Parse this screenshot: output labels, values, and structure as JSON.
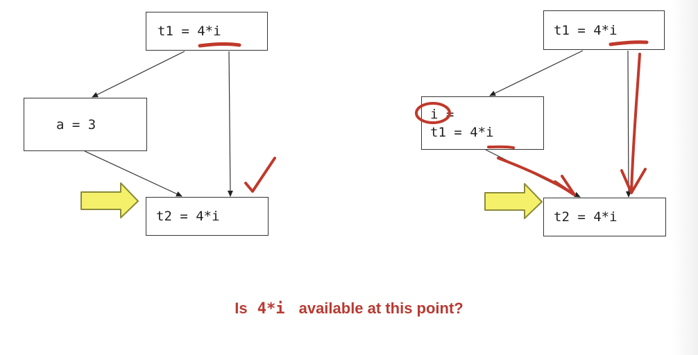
{
  "left_graph": {
    "top_node": "t1 = 4*i",
    "mid_node": "a = 3",
    "bottom_node": "t2 = 4*i"
  },
  "right_graph": {
    "top_node": "t1 = 4*i",
    "mid_node_line1": "i =",
    "mid_node_line2": "t1 = 4*i",
    "bottom_node": "t2 = 4*i"
  },
  "caption": {
    "prefix": "Is",
    "code": "4*i",
    "suffix": "available at this point?"
  },
  "colors": {
    "annotation_red": "#c0392b",
    "pointer_fill": "#f4f06a",
    "pointer_stroke": "#8a8a3a",
    "caption": "#b83a32"
  }
}
